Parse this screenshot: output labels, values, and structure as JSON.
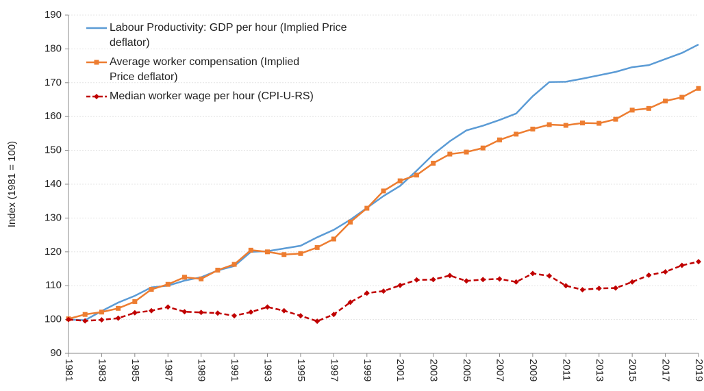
{
  "chart_data": {
    "type": "line",
    "y_label": "Index (1981 = 100)",
    "x": [
      1981,
      1982,
      1983,
      1984,
      1985,
      1986,
      1987,
      1988,
      1989,
      1990,
      1991,
      1992,
      1993,
      1994,
      1995,
      1996,
      1997,
      1998,
      1999,
      2000,
      2001,
      2002,
      2003,
      2004,
      2005,
      2006,
      2007,
      2008,
      2009,
      2010,
      2011,
      2012,
      2013,
      2014,
      2015,
      2016,
      2017,
      2018,
      2019
    ],
    "xlim": [
      1981,
      2019
    ],
    "xticks": [
      1981,
      1983,
      1985,
      1987,
      1989,
      1991,
      1993,
      1995,
      1997,
      1999,
      2001,
      2003,
      2005,
      2007,
      2009,
      2011,
      2013,
      2015,
      2017,
      2019
    ],
    "ylim": [
      90,
      190
    ],
    "yticks": [
      90,
      100,
      110,
      120,
      130,
      140,
      150,
      160,
      170,
      180,
      190
    ],
    "grid": true,
    "legend": "top-left",
    "series": [
      {
        "name": "Labour Productivity: GDP per hour (Implied Price deflator)",
        "color": "#5b9bd5",
        "marker": "none",
        "dash": false,
        "values": [
          100,
          99.8,
          102.5,
          105,
          107,
          109.5,
          110,
          111.5,
          112.5,
          114.5,
          115.8,
          120,
          120.2,
          121,
          121.8,
          124.3,
          126.5,
          129.5,
          133,
          136.5,
          139.5,
          144,
          148.8,
          152.7,
          155.9,
          157.3,
          159,
          160.9,
          166,
          170.2,
          170.3,
          171.2,
          172.2,
          173.2,
          174.6,
          175.2,
          177,
          178.8,
          181.3
        ]
      },
      {
        "name": "Average worker compensation (Implied Price deflator)",
        "color": "#ed7d31",
        "marker": "square",
        "dash": false,
        "values": [
          100.2,
          101.5,
          102.2,
          103.3,
          105.3,
          108.9,
          110.4,
          112.5,
          112,
          114.6,
          116.3,
          120.5,
          120,
          119.2,
          119.5,
          121.3,
          123.8,
          128.8,
          132.9,
          138,
          141,
          142.7,
          146.2,
          148.9,
          149.5,
          150.7,
          153.1,
          154.8,
          156.3,
          157.6,
          157.4,
          158.1,
          158,
          159.2,
          161.9,
          162.4,
          164.6,
          165.7,
          168.3
        ]
      },
      {
        "name": "Median worker wage per hour (CPI-U-RS)",
        "color": "#c00000",
        "marker": "diamond",
        "dash": true,
        "values": [
          100,
          99.6,
          99.9,
          100.4,
          102,
          102.6,
          103.7,
          102.3,
          102.1,
          101.9,
          101.1,
          102.2,
          103.7,
          102.6,
          101.1,
          99.5,
          101.5,
          105.1,
          107.8,
          108.4,
          110.1,
          111.7,
          111.8,
          113,
          111.4,
          111.8,
          112,
          111.1,
          113.6,
          112.9,
          110,
          108.8,
          109.2,
          109.3,
          111.1,
          113.1,
          114.1,
          116,
          117.1
        ]
      }
    ]
  }
}
